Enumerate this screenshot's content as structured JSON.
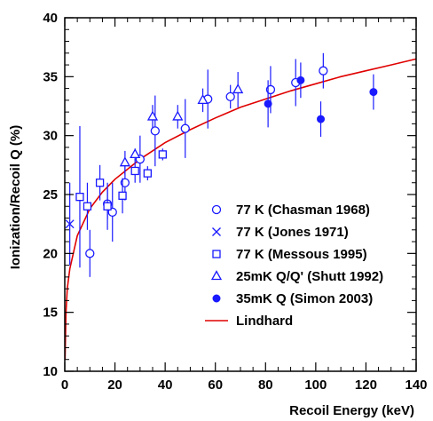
{
  "chart_data": {
    "type": "scatter",
    "xlabel": "Recoil Energy (keV)",
    "ylabel": "Ionization/Recoil Q (%)",
    "xlim": [
      0,
      140
    ],
    "ylim": [
      10,
      40
    ],
    "x_ticks": [
      0,
      20,
      40,
      60,
      80,
      100,
      120,
      140
    ],
    "y_ticks": [
      10,
      15,
      20,
      25,
      30,
      35,
      40
    ],
    "legend_position": "bottom-right",
    "colors": {
      "data": "#1a1aff",
      "theory": "#e00000",
      "axis": "#000000"
    },
    "series": [
      {
        "name": "77 K (Chasman 1968)",
        "marker": "open-circle",
        "points": [
          {
            "x": 10,
            "y": 20.0,
            "err": 2.0
          },
          {
            "x": 17,
            "y": 24.2,
            "err": 1.3
          },
          {
            "x": 19,
            "y": 23.5,
            "err": 2.5
          },
          {
            "x": 24,
            "y": 26.0,
            "err": 1.5
          },
          {
            "x": 30,
            "y": 28.0,
            "err": 2.0
          },
          {
            "x": 36,
            "y": 30.4,
            "err": 3.0
          },
          {
            "x": 48,
            "y": 30.6,
            "err": 2.5
          },
          {
            "x": 57,
            "y": 33.1,
            "err": 2.5
          },
          {
            "x": 66,
            "y": 33.3,
            "err": 1.0
          },
          {
            "x": 82,
            "y": 33.9,
            "err": 2.0
          },
          {
            "x": 92,
            "y": 34.5,
            "err": 2.0
          },
          {
            "x": 103,
            "y": 35.5,
            "err": 1.5
          }
        ]
      },
      {
        "name": "77 K (Jones 1971)",
        "marker": "x",
        "points": [
          {
            "x": 2,
            "y": 22.5,
            "err": 3.5
          }
        ]
      },
      {
        "name": "77 K (Messous 1995)",
        "marker": "open-square",
        "points": [
          {
            "x": 6,
            "y": 24.8,
            "err": 6.0
          },
          {
            "x": 9,
            "y": 24.0,
            "err": 2.0
          },
          {
            "x": 14,
            "y": 26.0,
            "err": 1.5
          },
          {
            "x": 17,
            "y": 24.0,
            "err": 2.0
          },
          {
            "x": 23,
            "y": 24.9,
            "err": 1.5
          },
          {
            "x": 28,
            "y": 27.0,
            "err": 1.0
          },
          {
            "x": 33,
            "y": 26.8,
            "err": 0.6
          },
          {
            "x": 39,
            "y": 28.4,
            "err": 0.5
          }
        ]
      },
      {
        "name": "25mK Q/Q' (Shutt 1992)",
        "marker": "open-triangle",
        "points": [
          {
            "x": 24,
            "y": 27.7,
            "err": 1.0
          },
          {
            "x": 28,
            "y": 28.4,
            "err": 0.5
          },
          {
            "x": 35,
            "y": 31.6,
            "err": 1.0
          },
          {
            "x": 45,
            "y": 31.6,
            "err": 1.0
          },
          {
            "x": 55,
            "y": 33.0,
            "err": 1.0
          },
          {
            "x": 69,
            "y": 33.9,
            "err": 1.5
          }
        ]
      },
      {
        "name": "35mK Q (Simon 2003)",
        "marker": "filled-circle",
        "points": [
          {
            "x": 81,
            "y": 32.7,
            "err": 2.0
          },
          {
            "x": 94,
            "y": 34.7,
            "err": 1.5
          },
          {
            "x": 102,
            "y": 31.4,
            "err": 1.5
          },
          {
            "x": 123,
            "y": 33.7,
            "err": 1.5
          }
        ]
      },
      {
        "name": "Lindhard",
        "marker": "line",
        "points": [
          {
            "x": 0.1,
            "y": 11.0
          },
          {
            "x": 0.5,
            "y": 15.0
          },
          {
            "x": 1,
            "y": 17.0
          },
          {
            "x": 2,
            "y": 18.7
          },
          {
            "x": 5,
            "y": 21.5
          },
          {
            "x": 10,
            "y": 23.8
          },
          {
            "x": 15,
            "y": 25.2
          },
          {
            "x": 20,
            "y": 26.3
          },
          {
            "x": 30,
            "y": 28.0
          },
          {
            "x": 40,
            "y": 29.4
          },
          {
            "x": 50,
            "y": 30.5
          },
          {
            "x": 60,
            "y": 31.5
          },
          {
            "x": 70,
            "y": 32.4
          },
          {
            "x": 80,
            "y": 33.1
          },
          {
            "x": 90,
            "y": 33.8
          },
          {
            "x": 100,
            "y": 34.4
          },
          {
            "x": 110,
            "y": 35.0
          },
          {
            "x": 120,
            "y": 35.5
          },
          {
            "x": 130,
            "y": 36.0
          },
          {
            "x": 140,
            "y": 36.5
          }
        ]
      }
    ]
  }
}
